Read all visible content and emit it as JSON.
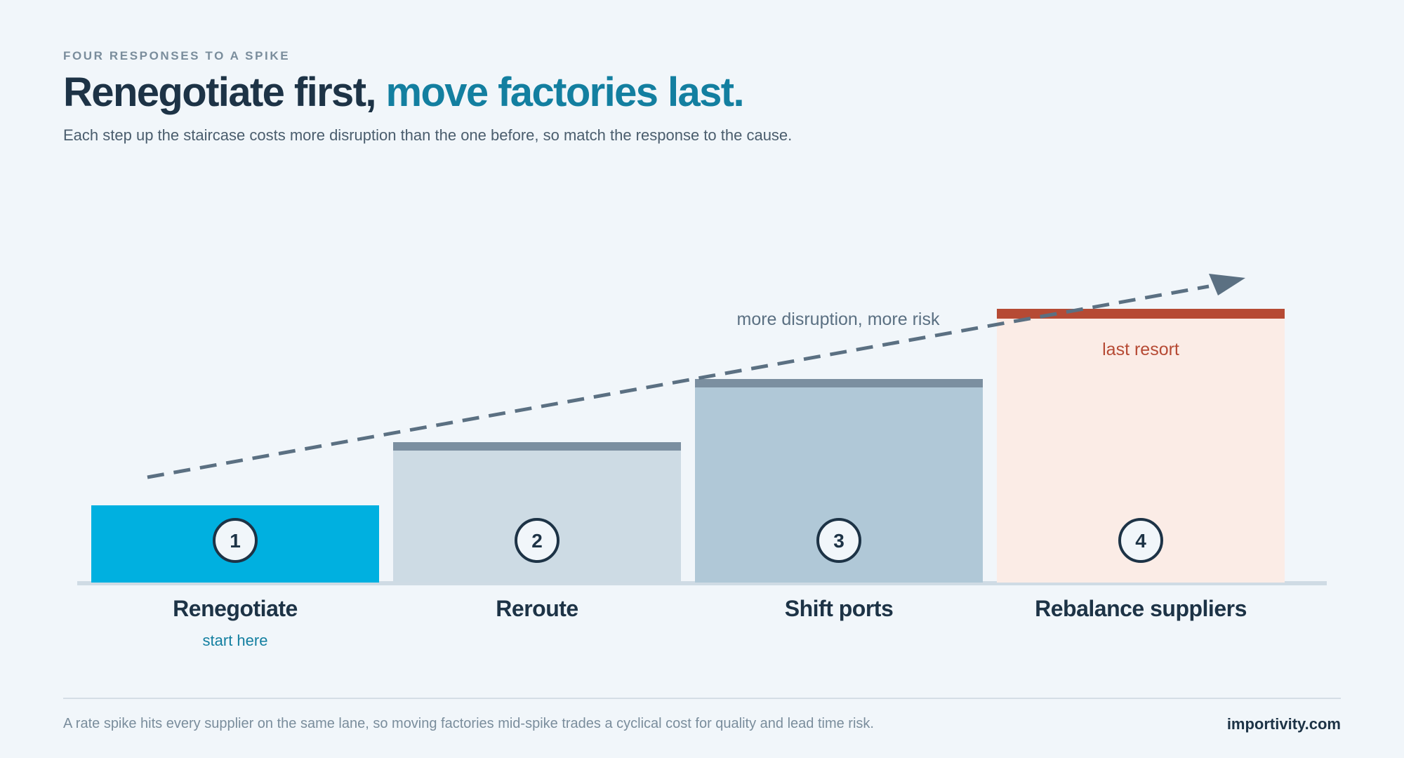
{
  "header": {
    "eyebrow": "FOUR RESPONSES TO A SPIKE",
    "title_main": "Renegotiate first,",
    "title_accent": "move factories last.",
    "subtitle": "Each step up the staircase costs more disruption than the one before, so match the response to the cause."
  },
  "diagram": {
    "trend_label": "more disruption, more risk",
    "steps": [
      {
        "number": "1",
        "name": "Renegotiate",
        "caption": "start here",
        "fill": "#00b0e0",
        "cap_color": "#00b0e0",
        "caption_color": "#137fa0"
      },
      {
        "number": "2",
        "name": "Reroute",
        "caption": "",
        "fill": "#cddbe4",
        "cap_color": "#7b8fa0",
        "caption_color": ""
      },
      {
        "number": "3",
        "name": "Shift ports",
        "caption": "",
        "fill": "#b0c8d7",
        "cap_color": "#7b8fa0",
        "caption_color": ""
      },
      {
        "number": "4",
        "name": "Rebalance suppliers",
        "caption": "",
        "fill": "#fbece6",
        "cap_color": "#b64a34",
        "caption_color": "",
        "note": "last resort",
        "note_color": "#b64a34"
      }
    ],
    "arrow_color": "#5b7082",
    "baseline_color": "#cfdbe4"
  },
  "footer": {
    "note": "A rate spike hits every supplier on the same lane, so moving factories mid-spike trades a cyclical cost for quality and lead time risk.",
    "brand": "importivity.com"
  }
}
